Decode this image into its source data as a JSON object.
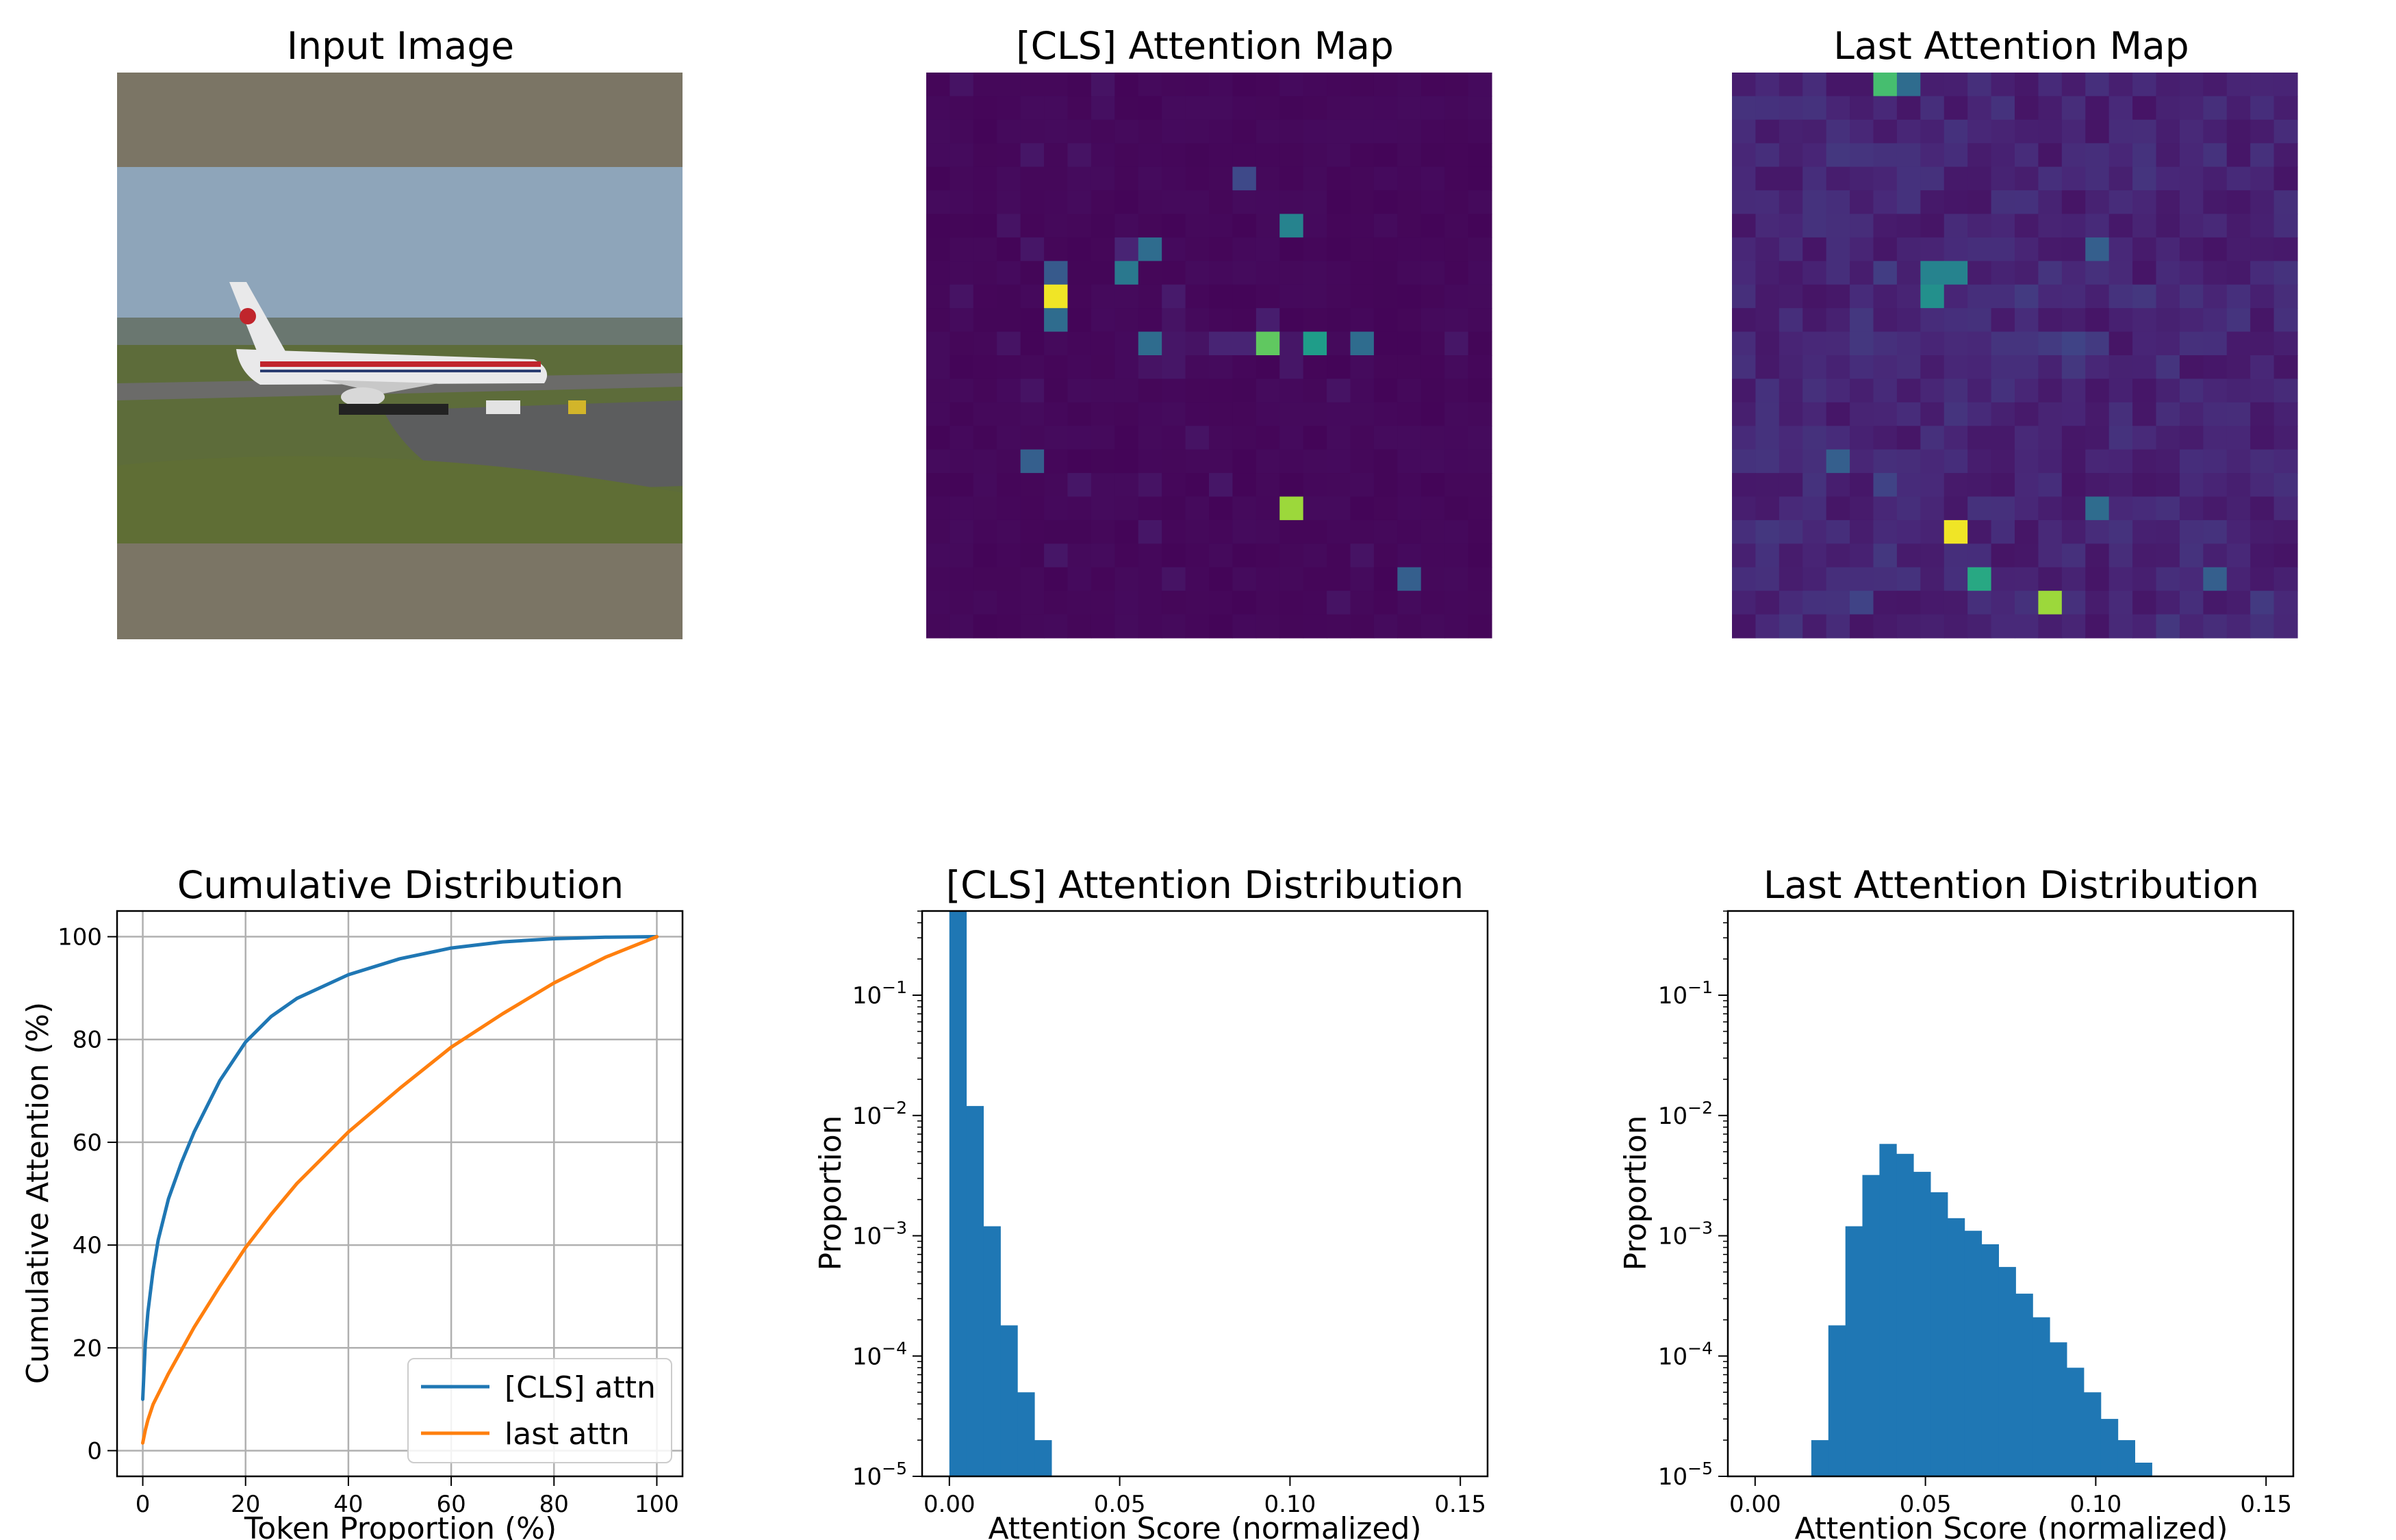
{
  "chart_data": [
    {
      "type": "image",
      "title": "Input Image",
      "content": "airliner on airport taxiway",
      "colors": {
        "letterbox": "#7b7565",
        "sky": "#8ea5ba",
        "grass": "#5d6c3a",
        "tarmac": "#5c5d5e",
        "fuselage": "#e9e9ea",
        "stripe": "#c0252c"
      }
    },
    {
      "type": "heatmap",
      "title": "[CLS] Attention Map",
      "grid": [
        24,
        24
      ],
      "colormap": "viridis",
      "background_level": 0.02,
      "hotspots": [
        {
          "row": 0,
          "col": 1,
          "v": 0.05
        },
        {
          "row": 0,
          "col": 7,
          "v": 0.05
        },
        {
          "row": 1,
          "col": 7,
          "v": 0.04
        },
        {
          "row": 3,
          "col": 4,
          "v": 0.06
        },
        {
          "row": 3,
          "col": 6,
          "v": 0.05
        },
        {
          "row": 4,
          "col": 13,
          "v": 0.22
        },
        {
          "row": 6,
          "col": 3,
          "v": 0.05
        },
        {
          "row": 6,
          "col": 15,
          "v": 0.45
        },
        {
          "row": 7,
          "col": 4,
          "v": 0.06
        },
        {
          "row": 7,
          "col": 8,
          "v": 0.1
        },
        {
          "row": 7,
          "col": 9,
          "v": 0.35
        },
        {
          "row": 8,
          "col": 8,
          "v": 0.4
        },
        {
          "row": 8,
          "col": 5,
          "v": 0.28
        },
        {
          "row": 9,
          "col": 10,
          "v": 0.07
        },
        {
          "row": 9,
          "col": 5,
          "v": 0.98
        },
        {
          "row": 9,
          "col": 1,
          "v": 0.05
        },
        {
          "row": 10,
          "col": 5,
          "v": 0.35
        },
        {
          "row": 10,
          "col": 10,
          "v": 0.05
        },
        {
          "row": 10,
          "col": 14,
          "v": 0.08
        },
        {
          "row": 11,
          "col": 9,
          "v": 0.35
        },
        {
          "row": 11,
          "col": 10,
          "v": 0.06
        },
        {
          "row": 11,
          "col": 12,
          "v": 0.1
        },
        {
          "row": 11,
          "col": 13,
          "v": 0.1
        },
        {
          "row": 11,
          "col": 14,
          "v": 0.75
        },
        {
          "row": 11,
          "col": 16,
          "v": 0.55
        },
        {
          "row": 11,
          "col": 18,
          "v": 0.35
        },
        {
          "row": 11,
          "col": 15,
          "v": 0.06
        },
        {
          "row": 11,
          "col": 11,
          "v": 0.05
        },
        {
          "row": 11,
          "col": 3,
          "v": 0.05
        },
        {
          "row": 11,
          "col": 22,
          "v": 0.06
        },
        {
          "row": 12,
          "col": 9,
          "v": 0.05
        },
        {
          "row": 12,
          "col": 10,
          "v": 0.06
        },
        {
          "row": 12,
          "col": 15,
          "v": 0.06
        },
        {
          "row": 13,
          "col": 4,
          "v": 0.05
        },
        {
          "row": 13,
          "col": 17,
          "v": 0.05
        },
        {
          "row": 15,
          "col": 11,
          "v": 0.05
        },
        {
          "row": 16,
          "col": 4,
          "v": 0.3
        },
        {
          "row": 17,
          "col": 6,
          "v": 0.06
        },
        {
          "row": 17,
          "col": 9,
          "v": 0.05
        },
        {
          "row": 17,
          "col": 12,
          "v": 0.06
        },
        {
          "row": 18,
          "col": 15,
          "v": 0.85
        },
        {
          "row": 19,
          "col": 9,
          "v": 0.06
        },
        {
          "row": 20,
          "col": 5,
          "v": 0.06
        },
        {
          "row": 20,
          "col": 18,
          "v": 0.05
        },
        {
          "row": 21,
          "col": 10,
          "v": 0.05
        },
        {
          "row": 21,
          "col": 20,
          "v": 0.3
        },
        {
          "row": 22,
          "col": 17,
          "v": 0.05
        }
      ]
    },
    {
      "type": "heatmap",
      "title": "Last Attention Map",
      "grid": [
        24,
        24
      ],
      "colormap": "viridis",
      "background_level": 0.1,
      "hotspots": [
        {
          "row": 0,
          "col": 6,
          "v": 0.7
        },
        {
          "row": 0,
          "col": 7,
          "v": 0.35
        },
        {
          "row": 3,
          "col": 4,
          "v": 0.16
        },
        {
          "row": 3,
          "col": 5,
          "v": 0.15
        },
        {
          "row": 3,
          "col": 6,
          "v": 0.14
        },
        {
          "row": 4,
          "col": 17,
          "v": 0.15
        },
        {
          "row": 5,
          "col": 11,
          "v": 0.14
        },
        {
          "row": 7,
          "col": 15,
          "v": 0.3
        },
        {
          "row": 8,
          "col": 6,
          "v": 0.18
        },
        {
          "row": 8,
          "col": 8,
          "v": 0.45
        },
        {
          "row": 8,
          "col": 9,
          "v": 0.45
        },
        {
          "row": 8,
          "col": 13,
          "v": 0.15
        },
        {
          "row": 9,
          "col": 8,
          "v": 0.5
        },
        {
          "row": 9,
          "col": 12,
          "v": 0.17
        },
        {
          "row": 9,
          "col": 17,
          "v": 0.16
        },
        {
          "row": 10,
          "col": 5,
          "v": 0.16
        },
        {
          "row": 10,
          "col": 10,
          "v": 0.14
        },
        {
          "row": 10,
          "col": 21,
          "v": 0.15
        },
        {
          "row": 11,
          "col": 5,
          "v": 0.16
        },
        {
          "row": 11,
          "col": 13,
          "v": 0.17
        },
        {
          "row": 11,
          "col": 14,
          "v": 0.2
        },
        {
          "row": 11,
          "col": 15,
          "v": 0.17
        },
        {
          "row": 11,
          "col": 11,
          "v": 0.15
        },
        {
          "row": 11,
          "col": 12,
          "v": 0.15
        },
        {
          "row": 12,
          "col": 14,
          "v": 0.16
        },
        {
          "row": 12,
          "col": 18,
          "v": 0.15
        },
        {
          "row": 14,
          "col": 9,
          "v": 0.15
        },
        {
          "row": 16,
          "col": 4,
          "v": 0.3
        },
        {
          "row": 16,
          "col": 1,
          "v": 0.15
        },
        {
          "row": 17,
          "col": 6,
          "v": 0.2
        },
        {
          "row": 18,
          "col": 15,
          "v": 0.35
        },
        {
          "row": 18,
          "col": 10,
          "v": 0.14
        },
        {
          "row": 19,
          "col": 9,
          "v": 0.98
        },
        {
          "row": 19,
          "col": 1,
          "v": 0.16
        },
        {
          "row": 20,
          "col": 6,
          "v": 0.16
        },
        {
          "row": 21,
          "col": 10,
          "v": 0.6
        },
        {
          "row": 21,
          "col": 20,
          "v": 0.3
        },
        {
          "row": 22,
          "col": 5,
          "v": 0.2
        },
        {
          "row": 22,
          "col": 13,
          "v": 0.85
        },
        {
          "row": 22,
          "col": 22,
          "v": 0.17
        },
        {
          "row": 23,
          "col": 2,
          "v": 0.15
        },
        {
          "row": 23,
          "col": 18,
          "v": 0.16
        }
      ]
    },
    {
      "type": "line",
      "title": "Cumulative Distribution",
      "xlabel": "Token Proportion (%)",
      "ylabel": "Cumulative Attention (%)",
      "xlim": [
        -5,
        105
      ],
      "ylim": [
        -5,
        105
      ],
      "xticks": [
        0,
        20,
        40,
        60,
        80,
        100
      ],
      "yticks": [
        0,
        20,
        40,
        60,
        80,
        100
      ],
      "grid": true,
      "legend": "lower-right",
      "series": [
        {
          "name": "[CLS] attn",
          "color": "#1f77b4",
          "x": [
            0,
            0.5,
            1,
            2,
            3,
            5,
            7.5,
            10,
            15,
            20,
            25,
            30,
            40,
            50,
            60,
            70,
            80,
            90,
            100
          ],
          "y": [
            10,
            21,
            27,
            35,
            41,
            49,
            56,
            62,
            72,
            79.5,
            84.5,
            88,
            92.6,
            95.7,
            97.8,
            99,
            99.6,
            99.9,
            100
          ]
        },
        {
          "name": "last attn",
          "color": "#ff7f0e",
          "x": [
            0,
            0.5,
            1,
            2,
            3,
            5,
            7.5,
            10,
            15,
            20,
            25,
            30,
            40,
            50,
            60,
            70,
            80,
            90,
            100
          ],
          "y": [
            1.5,
            4,
            6,
            9,
            11,
            15,
            19.5,
            24,
            32,
            39.5,
            46,
            52,
            62,
            70.5,
            78.5,
            85,
            91,
            96,
            100
          ]
        }
      ]
    },
    {
      "type": "bar",
      "title": "[CLS] Attention Distribution",
      "xlabel": "Attention Score (normalized)",
      "ylabel": "Proportion",
      "xlim": [
        -0.008,
        0.158
      ],
      "ylim_log10": [
        -5,
        -0.3
      ],
      "xticks": [
        "0.00",
        "0.05",
        "0.10",
        "0.15"
      ],
      "yticks": [
        -1,
        -2,
        -3,
        -4,
        -5
      ],
      "yscale": "log",
      "color": "#1f77b4",
      "bins": [
        {
          "x0": 0.0,
          "x1": 0.005,
          "p": 0.5
        },
        {
          "x0": 0.005,
          "x1": 0.01,
          "p": 0.012
        },
        {
          "x0": 0.01,
          "x1": 0.015,
          "p": 0.0012
        },
        {
          "x0": 0.015,
          "x1": 0.02,
          "p": 0.00018
        },
        {
          "x0": 0.02,
          "x1": 0.025,
          "p": 5e-05
        },
        {
          "x0": 0.025,
          "x1": 0.03,
          "p": 2e-05
        }
      ]
    },
    {
      "type": "bar",
      "title": "Last Attention Distribution",
      "xlabel": "Attention Score (normalized)",
      "ylabel": "Proportion",
      "xlim": [
        -0.008,
        0.158
      ],
      "ylim_log10": [
        -5,
        -0.3
      ],
      "xticks": [
        "0.00",
        "0.05",
        "0.10",
        "0.15"
      ],
      "yticks": [
        -1,
        -2,
        -3,
        -4,
        -5
      ],
      "yscale": "log",
      "color": "#1f77b4",
      "bins": [
        {
          "x0": 0.0165,
          "x1": 0.0215,
          "p": 2e-05
        },
        {
          "x0": 0.0215,
          "x1": 0.0265,
          "p": 0.00018
        },
        {
          "x0": 0.0265,
          "x1": 0.0315,
          "p": 0.0012
        },
        {
          "x0": 0.0315,
          "x1": 0.0365,
          "p": 0.0032
        },
        {
          "x0": 0.0365,
          "x1": 0.0415,
          "p": 0.0058
        },
        {
          "x0": 0.0415,
          "x1": 0.0465,
          "p": 0.0048
        },
        {
          "x0": 0.0465,
          "x1": 0.0515,
          "p": 0.0034
        },
        {
          "x0": 0.0515,
          "x1": 0.0565,
          "p": 0.0023
        },
        {
          "x0": 0.0565,
          "x1": 0.0615,
          "p": 0.0014
        },
        {
          "x0": 0.0615,
          "x1": 0.0665,
          "p": 0.0011
        },
        {
          "x0": 0.0665,
          "x1": 0.0715,
          "p": 0.00085
        },
        {
          "x0": 0.0715,
          "x1": 0.0765,
          "p": 0.00055
        },
        {
          "x0": 0.0765,
          "x1": 0.0815,
          "p": 0.00033
        },
        {
          "x0": 0.0815,
          "x1": 0.0865,
          "p": 0.00021
        },
        {
          "x0": 0.0865,
          "x1": 0.0915,
          "p": 0.00013
        },
        {
          "x0": 0.0915,
          "x1": 0.0965,
          "p": 8e-05
        },
        {
          "x0": 0.0965,
          "x1": 0.1015,
          "p": 5e-05
        },
        {
          "x0": 0.1015,
          "x1": 0.1065,
          "p": 3e-05
        },
        {
          "x0": 0.1065,
          "x1": 0.1115,
          "p": 2e-05
        },
        {
          "x0": 0.1115,
          "x1": 0.1165,
          "p": 1.3e-05
        }
      ]
    }
  ]
}
